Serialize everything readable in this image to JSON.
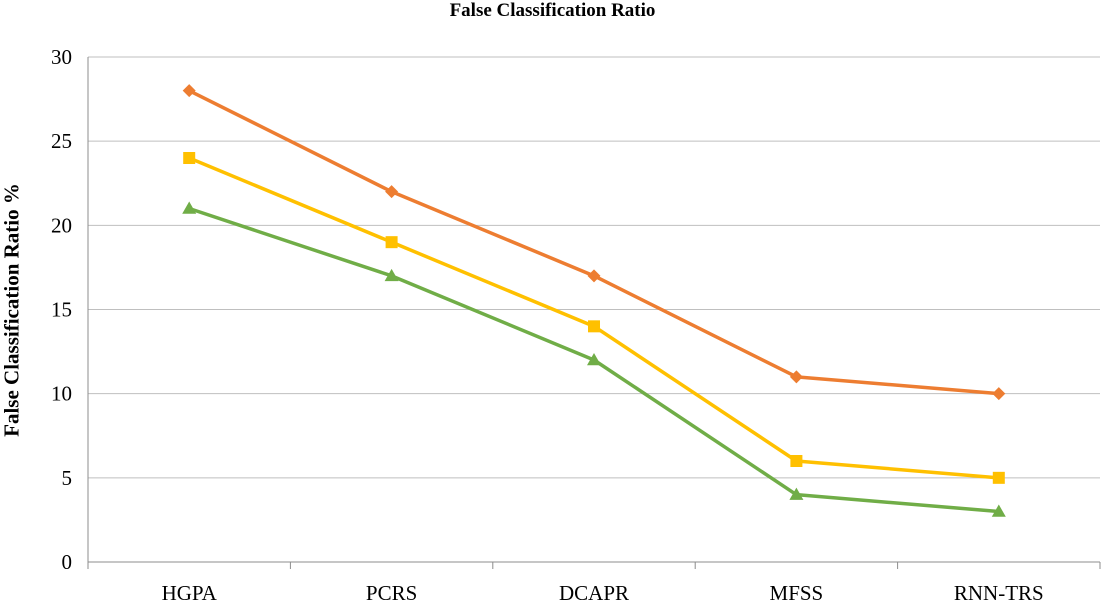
{
  "chart_data": {
    "type": "line",
    "title": "False Classification Ratio",
    "xlabel": "",
    "ylabel": "False Classification Ratio %",
    "categories": [
      "HGPA",
      "PCRS",
      "DCAPR",
      "MFSS",
      "RNN-TRS"
    ],
    "ylim": [
      0,
      30
    ],
    "yticks": [
      0,
      5,
      10,
      15,
      20,
      25,
      30
    ],
    "grid": true,
    "legend": "none",
    "series": [
      {
        "values": [
          28,
          22,
          17,
          11,
          10
        ],
        "color": "#ED7D31",
        "marker": "diamond"
      },
      {
        "values": [
          24,
          19,
          14,
          6,
          5
        ],
        "color": "#FFC000",
        "marker": "square"
      },
      {
        "values": [
          21,
          17,
          12,
          4,
          3
        ],
        "color": "#70AD47",
        "marker": "triangle"
      }
    ]
  }
}
